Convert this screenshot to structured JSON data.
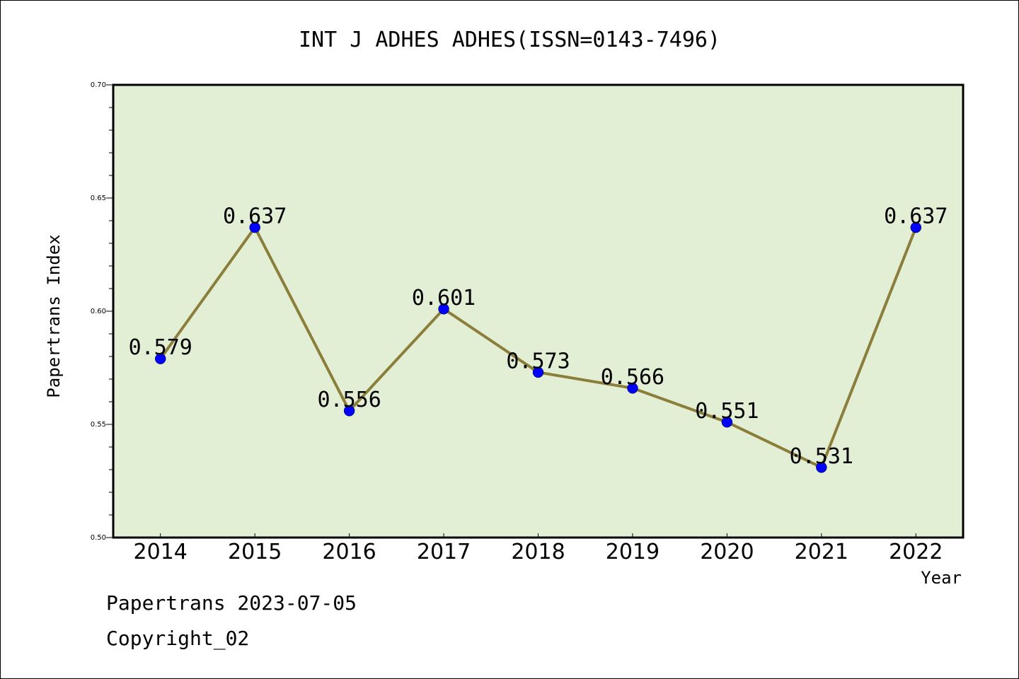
{
  "chart_data": {
    "type": "line",
    "title": "INT J ADHES ADHES(ISSN=0143-7496)",
    "xlabel": "Year",
    "ylabel": "Papertrans Index",
    "categories": [
      "2014",
      "2015",
      "2016",
      "2017",
      "2018",
      "2019",
      "2020",
      "2021",
      "2022"
    ],
    "values": [
      0.579,
      0.637,
      0.556,
      0.601,
      0.573,
      0.566,
      0.551,
      0.531,
      0.637
    ],
    "data_labels": [
      "0.579",
      "0.637",
      "0.556",
      "0.601",
      "0.573",
      "0.566",
      "0.551",
      "0.531",
      "0.637"
    ],
    "ylim": [
      0.5,
      0.7
    ],
    "yticks": [
      "0.50",
      "0.55",
      "0.60",
      "0.65",
      "0.70"
    ],
    "grid": false,
    "colors": {
      "plot_background": "#e2efd5",
      "line": "#8b7d3a",
      "marker": "#0000ff"
    }
  },
  "footer": {
    "line1": "Papertrans 2023-07-05",
    "line2": "Copyright_02"
  }
}
